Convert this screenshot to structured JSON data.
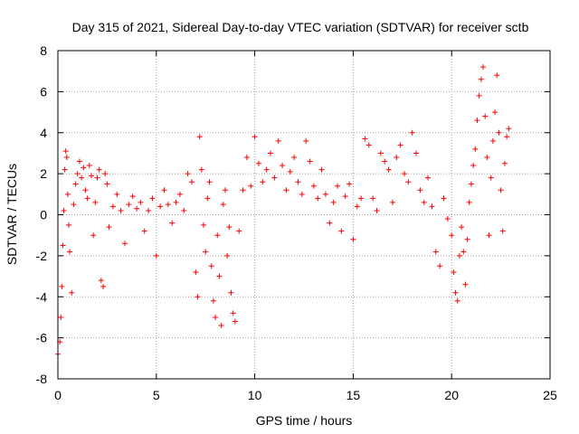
{
  "chart_data": {
    "type": "scatter",
    "title": "Day 315 of 2021, Sidereal Day-to-day VTEC variation (SDTVAR) for receiver sctb",
    "xlabel": "GPS time / hours",
    "ylabel": "SDTVAR / TECUs",
    "xlim": [
      0,
      25
    ],
    "ylim": [
      -8,
      8
    ],
    "xticks": [
      "0",
      "5",
      "10",
      "15",
      "20",
      "25"
    ],
    "yticks": [
      "-8",
      "-6",
      "-4",
      "-2",
      "0",
      "2",
      "4",
      "6",
      "8"
    ],
    "grid": true,
    "marker": "+",
    "series": [
      {
        "name": "SDTVAR",
        "color": "#ff0000",
        "x": [
          0.0,
          0.1,
          0.15,
          0.2,
          0.25,
          0.3,
          0.35,
          0.4,
          0.45,
          0.5,
          0.55,
          0.6,
          0.7,
          0.8,
          0.9,
          1.0,
          1.1,
          1.2,
          1.3,
          1.4,
          1.5,
          1.6,
          1.7,
          1.8,
          1.9,
          2.0,
          2.1,
          2.2,
          2.3,
          2.4,
          2.5,
          2.6,
          2.8,
          3.0,
          3.2,
          3.4,
          3.6,
          3.8,
          4.0,
          4.2,
          4.4,
          4.6,
          4.8,
          5.0,
          5.2,
          5.4,
          5.6,
          5.8,
          6.0,
          6.2,
          6.4,
          6.6,
          6.8,
          7.0,
          7.1,
          7.2,
          7.3,
          7.4,
          7.5,
          7.6,
          7.7,
          7.8,
          7.9,
          8.0,
          8.1,
          8.2,
          8.3,
          8.4,
          8.5,
          8.6,
          8.7,
          8.8,
          8.9,
          9.0,
          9.2,
          9.4,
          9.6,
          9.8,
          10.0,
          10.2,
          10.4,
          10.6,
          10.8,
          11.0,
          11.2,
          11.4,
          11.6,
          11.8,
          12.0,
          12.2,
          12.4,
          12.6,
          12.8,
          13.0,
          13.2,
          13.4,
          13.6,
          13.8,
          14.0,
          14.2,
          14.4,
          14.6,
          14.8,
          15.0,
          15.2,
          15.4,
          15.6,
          15.8,
          16.0,
          16.2,
          16.4,
          16.6,
          16.8,
          17.0,
          17.2,
          17.4,
          17.6,
          17.8,
          18.0,
          18.2,
          18.4,
          18.6,
          18.8,
          19.0,
          19.2,
          19.4,
          19.6,
          19.8,
          20.0,
          20.1,
          20.2,
          20.3,
          20.4,
          20.5,
          20.6,
          20.7,
          20.8,
          20.9,
          21.0,
          21.1,
          21.2,
          21.3,
          21.4,
          21.5,
          21.6,
          21.7,
          21.8,
          21.9,
          22.0,
          22.1,
          22.2,
          22.3,
          22.4,
          22.5,
          22.6,
          22.7,
          22.8,
          22.9
        ],
        "y": [
          -6.8,
          -6.2,
          -5.0,
          -3.5,
          -1.5,
          0.2,
          2.2,
          3.1,
          2.8,
          1.0,
          -0.5,
          -1.8,
          -3.8,
          0.5,
          1.5,
          2.0,
          2.6,
          1.8,
          2.3,
          1.2,
          0.8,
          2.4,
          1.9,
          -1.0,
          0.6,
          1.8,
          2.2,
          -3.2,
          -3.5,
          2.0,
          1.5,
          -0.6,
          0.4,
          1.0,
          0.2,
          -1.4,
          0.5,
          0.9,
          0.3,
          0.6,
          -0.8,
          0.2,
          0.8,
          -2.0,
          0.4,
          1.2,
          0.5,
          -0.4,
          0.6,
          1.0,
          0.2,
          2.0,
          1.6,
          -2.8,
          -4.0,
          3.8,
          2.2,
          -0.5,
          -1.8,
          0.8,
          1.6,
          -2.5,
          -4.2,
          -5.0,
          -1.0,
          -3.0,
          -5.4,
          0.5,
          1.2,
          -2.0,
          -0.6,
          -3.8,
          -4.8,
          -5.2,
          -0.8,
          1.2,
          2.8,
          1.4,
          3.8,
          2.5,
          1.6,
          2.2,
          3.0,
          1.8,
          3.6,
          2.4,
          1.2,
          2.1,
          2.8,
          1.6,
          1.0,
          3.6,
          2.6,
          1.4,
          0.8,
          2.2,
          1.0,
          -0.4,
          0.6,
          1.4,
          -0.8,
          0.9,
          1.5,
          -1.2,
          0.4,
          0.8,
          3.7,
          3.4,
          0.8,
          0.2,
          3.0,
          2.6,
          2.2,
          0.6,
          2.8,
          3.4,
          2.0,
          1.6,
          4.0,
          3.0,
          1.2,
          0.6,
          1.8,
          0.4,
          -1.8,
          -2.5,
          0.8,
          -0.2,
          -1.0,
          -2.8,
          -3.8,
          -4.2,
          -2.0,
          -0.6,
          -1.8,
          -3.4,
          -1.2,
          0.6,
          1.5,
          2.4,
          3.2,
          4.6,
          5.8,
          6.6,
          7.2,
          4.8,
          2.8,
          -1.0,
          1.8,
          3.6,
          5.0,
          6.8,
          4.0,
          1.2,
          -0.8,
          2.5,
          3.8,
          4.2
        ]
      }
    ]
  }
}
